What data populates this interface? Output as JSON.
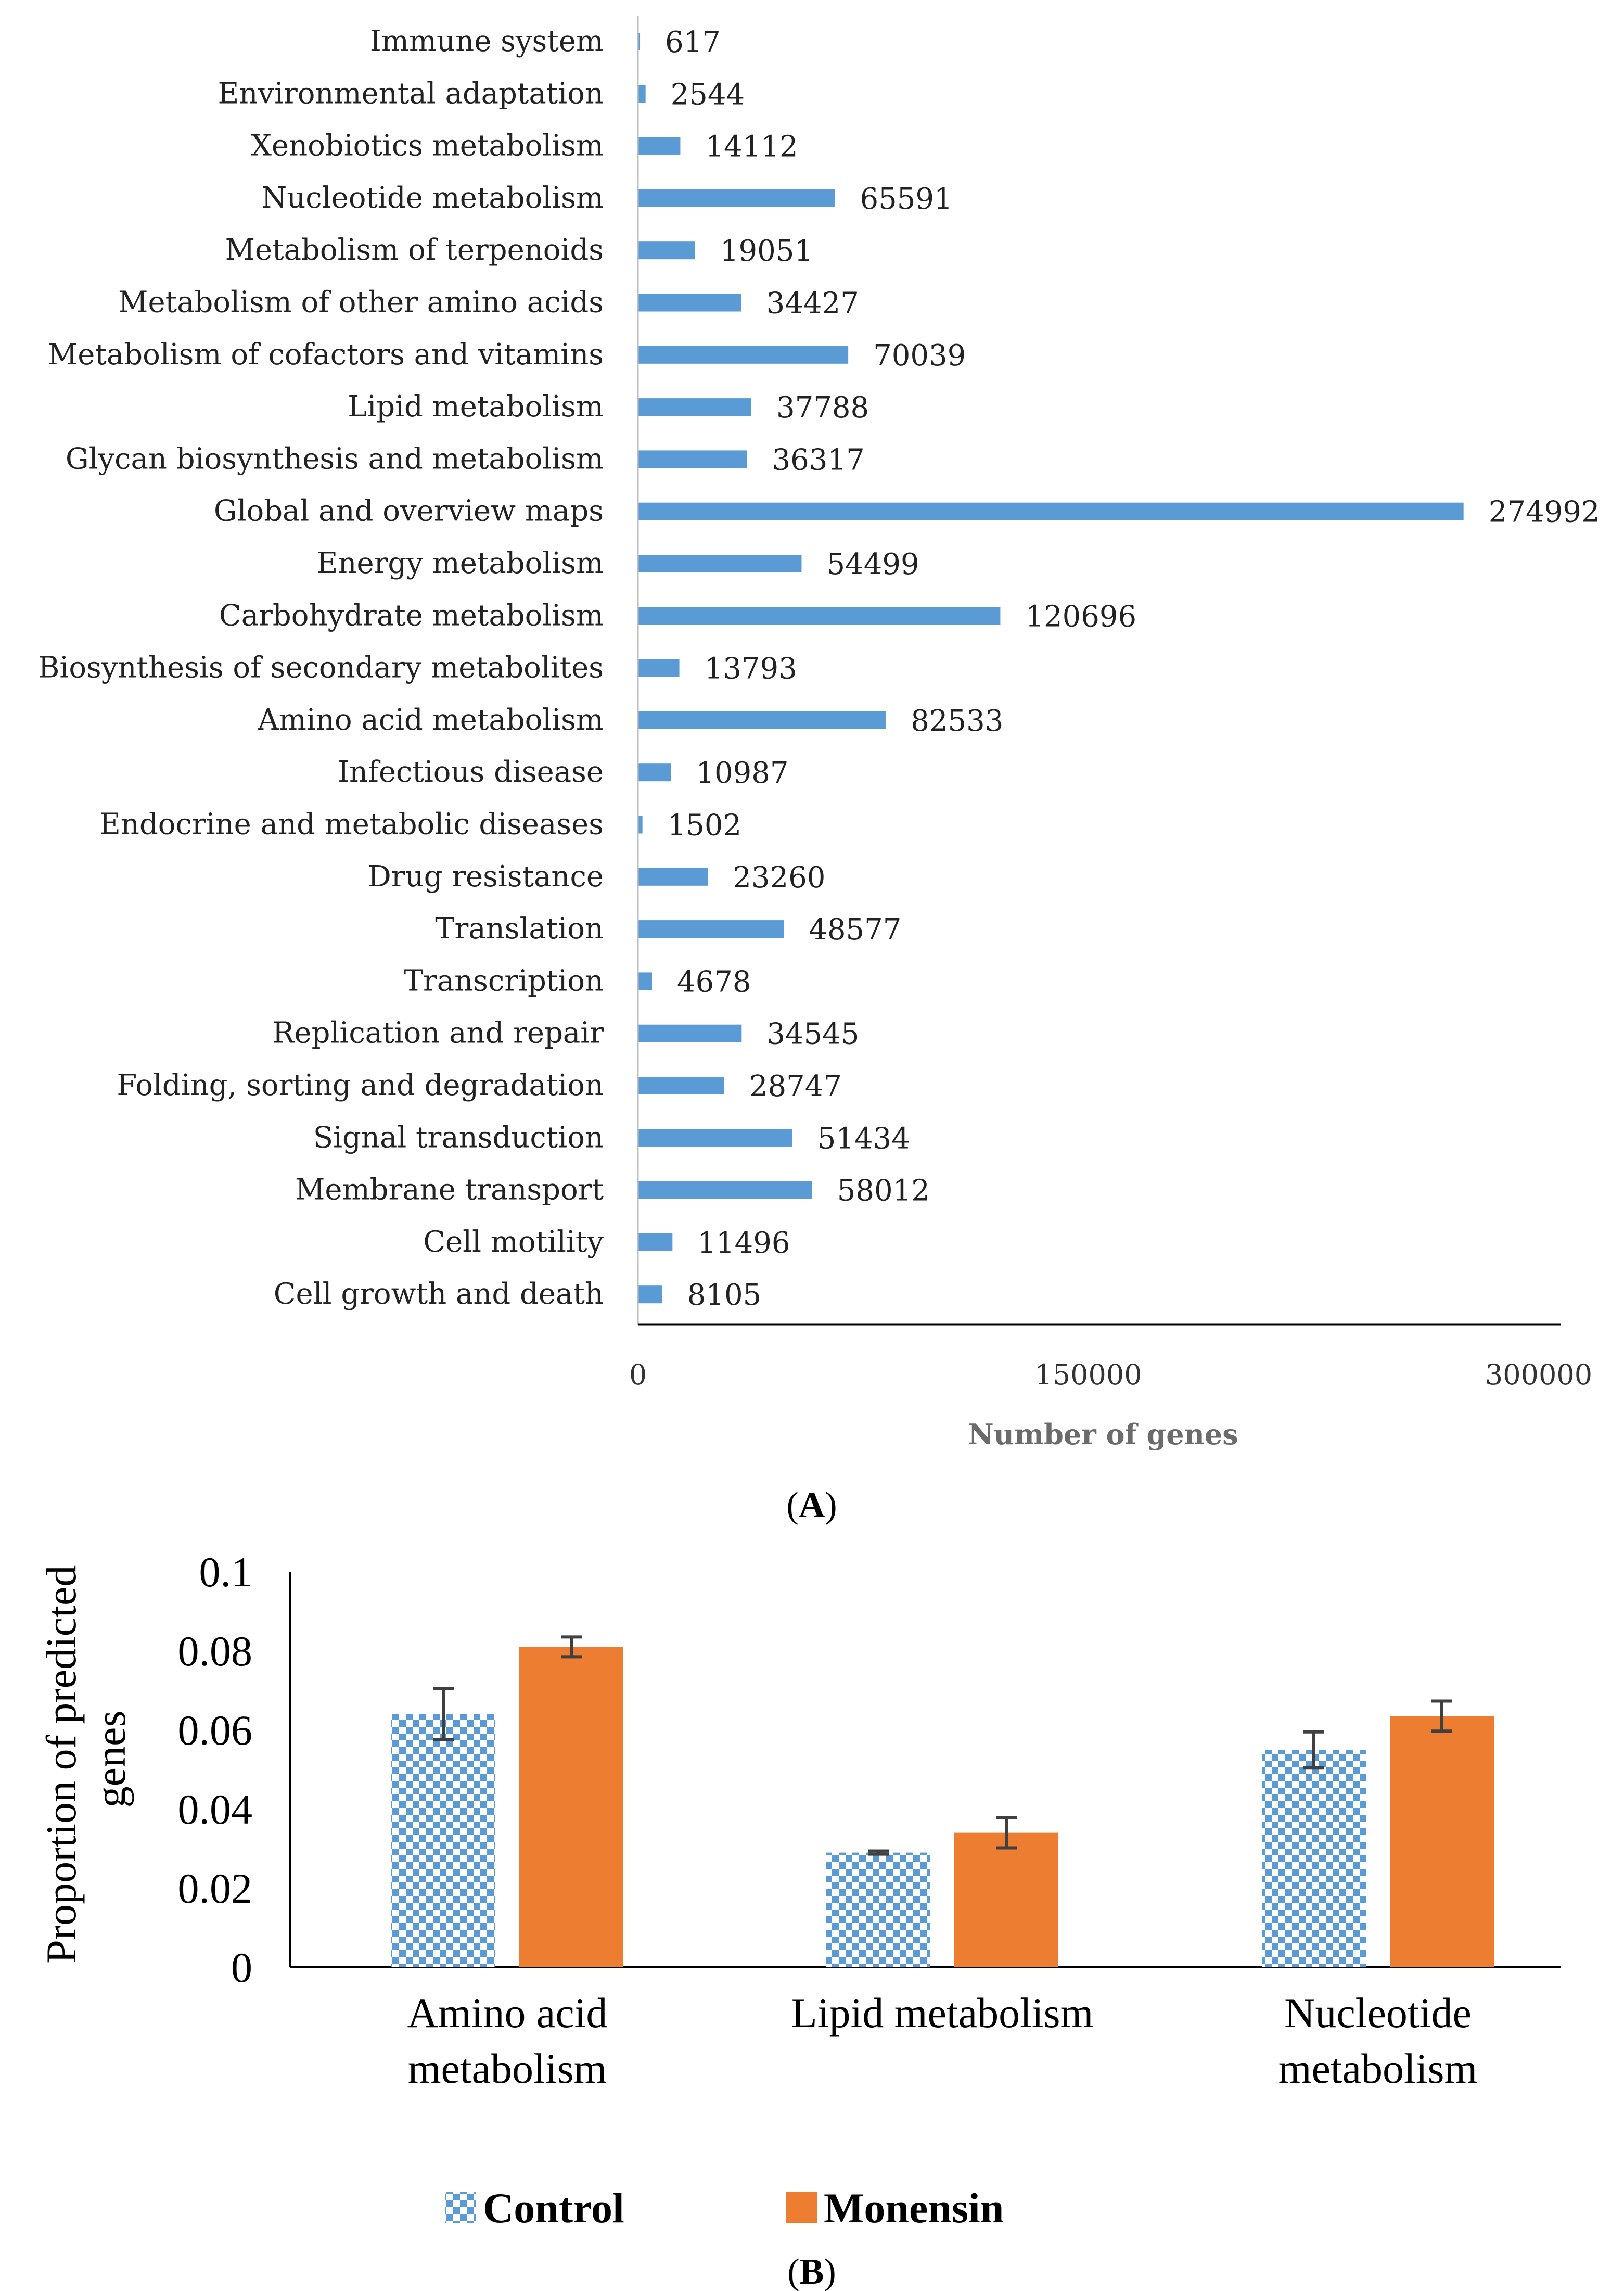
{
  "chart_data": [
    {
      "type": "bar",
      "orientation": "horizontal",
      "title": "",
      "xlabel": "Number of genes",
      "ylabel": "",
      "xlim": [
        0,
        300000
      ],
      "xticks": [
        "0",
        "150000",
        "300000"
      ],
      "categories": [
        "Immune system",
        "Environmental adaptation",
        "Xenobiotics metabolism",
        "Nucleotide metabolism",
        "Metabolism of terpenoids",
        "Metabolism of other amino acids",
        "Metabolism of cofactors and vitamins",
        "Lipid metabolism",
        "Glycan biosynthesis and metabolism",
        "Global and overview maps",
        "Energy metabolism",
        "Carbohydrate metabolism",
        "Biosynthesis of secondary metabolites",
        "Amino acid metabolism",
        "Infectious disease",
        "Endocrine and metabolic diseases",
        "Drug resistance",
        "Translation",
        "Transcription",
        "Replication and repair",
        "Folding, sorting and degradation",
        "Signal transduction",
        "Membrane transport",
        "Cell motility",
        "Cell growth and death"
      ],
      "values": [
        617,
        2544,
        14112,
        65591,
        19051,
        34427,
        70039,
        37788,
        36317,
        274992,
        54499,
        120696,
        13793,
        82533,
        10987,
        1502,
        23260,
        48577,
        4678,
        34545,
        28747,
        51434,
        58012,
        11496,
        8105
      ],
      "color": "#5b9bd5",
      "panel_label": "A"
    },
    {
      "type": "bar",
      "title": "",
      "xlabel": "",
      "ylabel": "Proportion of predicted genes",
      "ylim": [
        0,
        0.1
      ],
      "yticks": [
        "0",
        "0.02",
        "0.04",
        "0.06",
        "0.08",
        "0.1"
      ],
      "categories": [
        [
          "Amino acid",
          "metabolism"
        ],
        [
          "Lipid metabolism"
        ],
        [
          "Nucleotide",
          "metabolism"
        ]
      ],
      "series": [
        {
          "name": "Control",
          "values": [
            0.064,
            0.029,
            0.055
          ],
          "errors": [
            0.0065,
            0.0004,
            0.0045
          ],
          "color": "#5b9bd5",
          "pattern": "checkered"
        },
        {
          "name": "Monensin",
          "values": [
            0.081,
            0.034,
            0.0635
          ],
          "errors": [
            0.0025,
            0.0038,
            0.0038
          ],
          "color": "#ed7d31",
          "pattern": "solid"
        }
      ],
      "legend_position": "bottom",
      "panel_label": "B"
    }
  ]
}
